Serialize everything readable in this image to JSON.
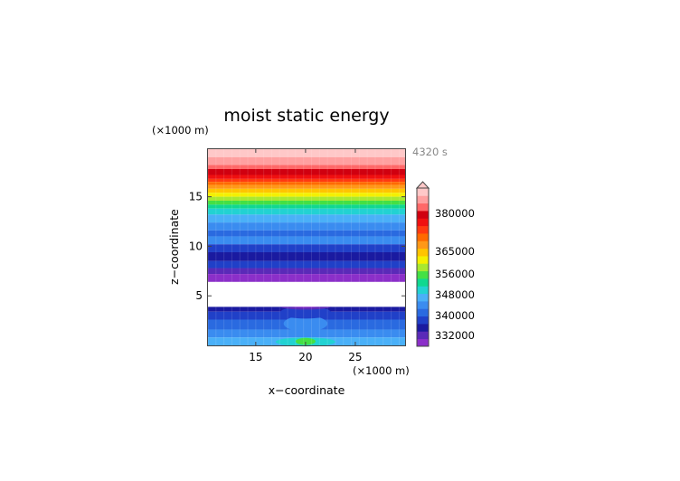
{
  "chart_data": {
    "type": "heatmap",
    "title": "moist static energy",
    "xlabel": "x−coordinate",
    "ylabel": "z−coordinate",
    "x_unit": "(×1000 m)",
    "y_unit": "(×1000 m)",
    "time_label": "4320 s",
    "xlim": [
      10.2,
      30
    ],
    "ylim": [
      0,
      19.8
    ],
    "x_ticks": [
      15,
      20,
      25
    ],
    "y_ticks": [
      5,
      10,
      15
    ],
    "x_tick_labels": [
      "15",
      "20",
      "25"
    ],
    "y_tick_labels": [
      "5",
      "10",
      "15"
    ],
    "grid": false,
    "colorbar": {
      "tick_labels": [
        "380000",
        "365000",
        "356000",
        "348000",
        "340000",
        "332000"
      ],
      "extend": "max",
      "colors": [
        "#8b2fc9",
        "#5a2ab8",
        "#1a1aa0",
        "#2040c8",
        "#2a6ae0",
        "#3a8cf0",
        "#4ab0f8",
        "#22d2d2",
        "#10d890",
        "#44e044",
        "#a8e830",
        "#f4f000",
        "#ffc400",
        "#ff9818",
        "#ff6a00",
        "#ff3a10",
        "#f01010",
        "#d00010",
        "#ff6868",
        "#ffa0a0",
        "#ffc8c8"
      ]
    },
    "masked_region": {
      "z_min": 3.9,
      "z_max": 6.4
    },
    "upper_layers_top_down": [
      {
        "z_top": 19.8,
        "z_bottom": 19.0,
        "color": "#ffc8c8"
      },
      {
        "z_top": 19.0,
        "z_bottom": 18.2,
        "color": "#ffa0a0"
      },
      {
        "z_top": 18.2,
        "z_bottom": 17.8,
        "color": "#ff6868"
      },
      {
        "z_top": 17.8,
        "z_bottom": 17.2,
        "color": "#d00010"
      },
      {
        "z_top": 17.2,
        "z_bottom": 16.8,
        "color": "#f01010"
      },
      {
        "z_top": 16.8,
        "z_bottom": 16.5,
        "color": "#ff3a10"
      },
      {
        "z_top": 16.5,
        "z_bottom": 16.2,
        "color": "#ff6a00"
      },
      {
        "z_top": 16.2,
        "z_bottom": 15.8,
        "color": "#ff9818"
      },
      {
        "z_top": 15.8,
        "z_bottom": 15.4,
        "color": "#ffc400"
      },
      {
        "z_top": 15.4,
        "z_bottom": 15.0,
        "color": "#f4f000"
      },
      {
        "z_top": 15.0,
        "z_bottom": 14.6,
        "color": "#a8e830"
      },
      {
        "z_top": 14.6,
        "z_bottom": 14.2,
        "color": "#44e044"
      },
      {
        "z_top": 14.2,
        "z_bottom": 13.8,
        "color": "#10d890"
      },
      {
        "z_top": 13.8,
        "z_bottom": 13.2,
        "color": "#22d2d2"
      },
      {
        "z_top": 13.2,
        "z_bottom": 12.4,
        "color": "#4ab0f8"
      },
      {
        "z_top": 12.4,
        "z_bottom": 11.6,
        "color": "#3a8cf0"
      },
      {
        "z_top": 11.6,
        "z_bottom": 11.0,
        "color": "#2a6ae0"
      },
      {
        "z_top": 11.0,
        "z_bottom": 10.2,
        "color": "#3a8cf0"
      },
      {
        "z_top": 10.2,
        "z_bottom": 9.4,
        "color": "#2040c8"
      },
      {
        "z_top": 9.4,
        "z_bottom": 8.5,
        "color": "#1a1aa0"
      },
      {
        "z_top": 8.5,
        "z_bottom": 7.8,
        "color": "#2040c8"
      },
      {
        "z_top": 7.8,
        "z_bottom": 7.2,
        "color": "#5a2ab8"
      },
      {
        "z_top": 7.2,
        "z_bottom": 6.4,
        "color": "#8b2fc9"
      }
    ],
    "lower_layers_top_down": [
      {
        "z_top": 3.9,
        "z_bottom": 3.4,
        "color": "#1a1aa0"
      },
      {
        "z_top": 3.4,
        "z_bottom": 2.6,
        "color": "#2040c8"
      },
      {
        "z_top": 2.6,
        "z_bottom": 1.6,
        "color": "#2a6ae0"
      },
      {
        "z_top": 1.6,
        "z_bottom": 0.8,
        "color": "#3a8cf0"
      },
      {
        "z_top": 0.8,
        "z_bottom": 0.0,
        "color": "#4ab0f8"
      }
    ],
    "central_features": [
      {
        "x_center": 20.0,
        "z_center": 0.35,
        "x_half_width": 3.0,
        "z_half_height": 0.45,
        "color": "#22d2d2"
      },
      {
        "x_center": 20.0,
        "z_center": 0.4,
        "x_half_width": 1.0,
        "z_half_height": 0.35,
        "color": "#44e044"
      },
      {
        "x_center": 20.0,
        "z_center": 2.2,
        "x_half_width": 2.2,
        "z_half_height": 0.8,
        "color": "#3a8cf0"
      },
      {
        "x_center": 20.0,
        "z_center": 3.3,
        "x_half_width": 2.6,
        "z_half_height": 0.6,
        "color": "#2040c8"
      },
      {
        "x_center": 20.0,
        "z_center": 3.95,
        "x_half_width": 2.6,
        "z_half_height": 0.35,
        "color": "#5a2ab8"
      },
      {
        "x_center": 20.0,
        "z_center": 4.05,
        "x_half_width": 1.8,
        "z_half_height": 0.25,
        "color": "#8b2fc9"
      }
    ]
  }
}
